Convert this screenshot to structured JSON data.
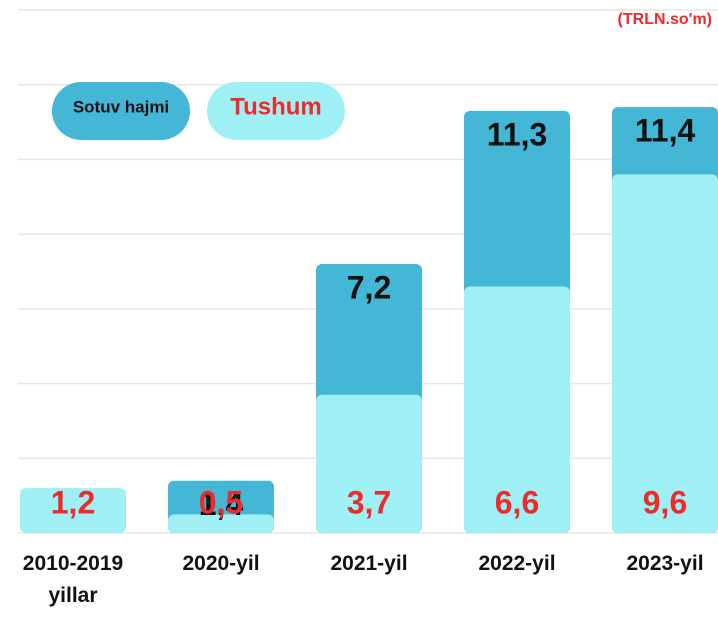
{
  "chart_data": {
    "type": "bar",
    "unit_label": "(TRLN.so'm)",
    "categories": [
      "2010-2019 yillar",
      "2020-yil",
      "2021-yil",
      "2022-yil",
      "2023-yil"
    ],
    "series": [
      {
        "name": "Sotuv hajmi",
        "color": "#44b6d6",
        "label_color": "#111111",
        "values": [
          null,
          1.4,
          7.2,
          11.3,
          11.4
        ],
        "value_labels": [
          null,
          "1,4",
          "7,2",
          "11,3",
          "11,4"
        ]
      },
      {
        "name": "Tushum",
        "color": "#9ff0f4",
        "label_color": "#ee2a2a",
        "values": [
          1.2,
          0.5,
          3.7,
          6.6,
          9.6
        ],
        "value_labels": [
          "1,2",
          "0,5",
          "3,7",
          "6,6",
          "9,6"
        ]
      }
    ],
    "ylim": [
      0,
      14
    ],
    "yticks": [
      0,
      2,
      4,
      6,
      8,
      10,
      12,
      14
    ],
    "grid": true
  }
}
